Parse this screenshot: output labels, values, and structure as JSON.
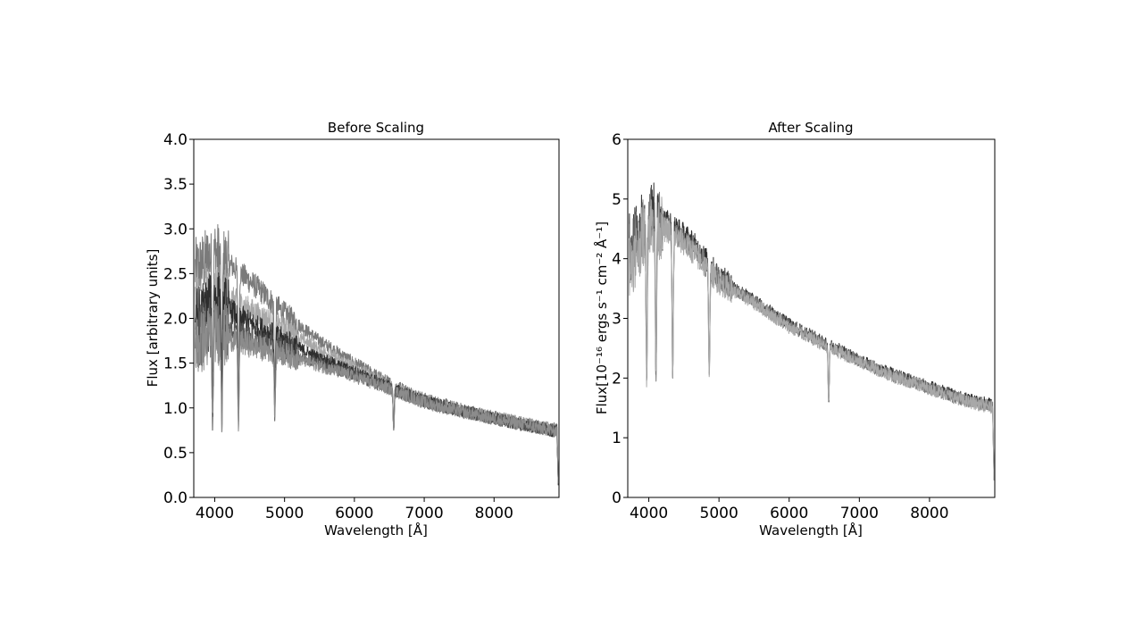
{
  "chart_data": [
    {
      "type": "line",
      "title": "Before Scaling",
      "xlabel": "Wavelength [Å]",
      "ylabel": "Flux [arbitrary units]",
      "xlim": [
        3700,
        8930
      ],
      "ylim": [
        0,
        4.0
      ],
      "xticks": [
        4000,
        5000,
        6000,
        7000,
        8000
      ],
      "yticks": [
        0.0,
        0.5,
        1.0,
        1.5,
        2.0,
        2.5,
        3.0,
        3.5,
        4.0
      ],
      "ytick_labels": [
        "0.0",
        "0.5",
        "1.0",
        "1.5",
        "2.0",
        "2.5",
        "3.0",
        "3.5",
        "4.0"
      ],
      "grid": false,
      "line_colors": [
        "#7a7a7a",
        "#a8a8a8",
        "#2e2e2e",
        "#555555",
        "#8c8c8c"
      ],
      "absorption_lines": [
        3970,
        4102,
        4340,
        4861,
        6563
      ],
      "continuum_x": [
        3750,
        4000,
        4300,
        4600,
        5000,
        5500,
        6000,
        6500,
        7000,
        7500,
        8000,
        8500,
        8900
      ],
      "series": [
        {
          "values": [
            2.55,
            2.75,
            2.55,
            2.35,
            2.05,
            1.75,
            1.5,
            1.28,
            1.1,
            0.99,
            0.9,
            0.82,
            0.76
          ]
        },
        {
          "values": [
            2.1,
            2.3,
            2.2,
            2.05,
            1.88,
            1.65,
            1.45,
            1.25,
            1.08,
            0.97,
            0.89,
            0.81,
            0.75
          ]
        },
        {
          "values": [
            2.0,
            2.2,
            2.05,
            1.9,
            1.75,
            1.55,
            1.4,
            1.23,
            1.07,
            0.97,
            0.88,
            0.8,
            0.74
          ]
        },
        {
          "values": [
            1.8,
            1.95,
            1.85,
            1.75,
            1.65,
            1.5,
            1.37,
            1.22,
            1.07,
            0.97,
            0.88,
            0.8,
            0.74
          ]
        },
        {
          "values": [
            1.7,
            1.85,
            1.75,
            1.68,
            1.6,
            1.47,
            1.35,
            1.21,
            1.06,
            0.96,
            0.88,
            0.8,
            0.74
          ]
        }
      ]
    },
    {
      "type": "line",
      "title": "After Scaling",
      "xlabel": "Wavelength [Å]",
      "ylabel": "Flux[10⁻¹⁶ ergs s⁻¹ cm⁻² Å⁻¹]",
      "xlim": [
        3700,
        8930
      ],
      "ylim": [
        0,
        6
      ],
      "xticks": [
        4000,
        5000,
        6000,
        7000,
        8000
      ],
      "yticks": [
        0,
        1,
        2,
        3,
        4,
        5,
        6
      ],
      "ytick_labels": [
        "0",
        "1",
        "2",
        "3",
        "4",
        "5",
        "6"
      ],
      "grid": false,
      "line_colors": [
        "#2e2e2e",
        "#7a7a7a",
        "#a8a8a8"
      ],
      "absorption_lines": [
        3970,
        4102,
        4340,
        4861,
        6563
      ],
      "continuum_x": [
        3750,
        4000,
        4300,
        4600,
        5000,
        5500,
        6000,
        6500,
        7000,
        7500,
        8000,
        8500,
        8900
      ],
      "series": [
        {
          "values": [
            4.3,
            4.8,
            4.6,
            4.3,
            3.7,
            3.3,
            2.9,
            2.6,
            2.3,
            2.05,
            1.85,
            1.65,
            1.55
          ]
        },
        {
          "values": [
            4.1,
            4.7,
            4.5,
            4.2,
            3.65,
            3.28,
            2.88,
            2.58,
            2.28,
            2.03,
            1.83,
            1.63,
            1.52
          ]
        },
        {
          "values": [
            3.9,
            4.6,
            4.45,
            4.15,
            3.6,
            3.25,
            2.85,
            2.55,
            2.27,
            2.02,
            1.82,
            1.62,
            1.5
          ]
        }
      ]
    }
  ]
}
